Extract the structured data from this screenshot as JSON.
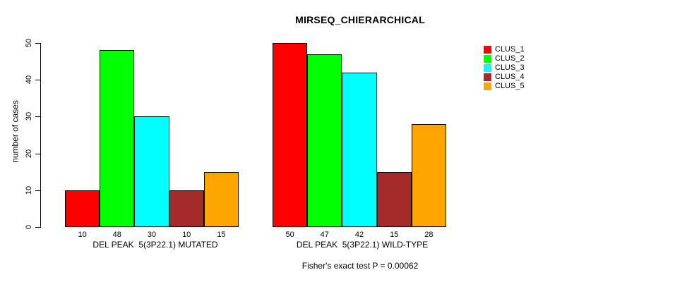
{
  "title": "MIRSEQ_CHIERARCHICAL",
  "ylabel": "number of cases",
  "footer": "Fisher's exact test P = 0.00062",
  "chart_data": {
    "type": "bar",
    "title": "MIRSEQ_CHIERARCHICAL",
    "xlabel": "",
    "ylabel": "number of cases",
    "ylim": [
      0,
      50
    ],
    "yticks": [
      0,
      10,
      20,
      30,
      40,
      50
    ],
    "grid": false,
    "legend_position": "right",
    "categories": [
      "DEL PEAK  5(3P22.1) MUTATED",
      "DEL PEAK  5(3P22.1) WILD-TYPE"
    ],
    "series": [
      {
        "name": "CLUS_1",
        "color": "#FF0000",
        "values": [
          10,
          50
        ]
      },
      {
        "name": "CLUS_2",
        "color": "#00FF00",
        "values": [
          48,
          47
        ]
      },
      {
        "name": "CLUS_3",
        "color": "#00FFFF",
        "values": [
          30,
          42
        ]
      },
      {
        "name": "CLUS_4",
        "color": "#A52A2A",
        "values": [
          10,
          15
        ]
      },
      {
        "name": "CLUS_5",
        "color": "#FFA500",
        "values": [
          15,
          28
        ]
      }
    ],
    "bar_value_labels": {
      "DEL PEAK  5(3P22.1) MUTATED": [
        10,
        48,
        30,
        10,
        15
      ],
      "DEL PEAK  5(3P22.1) WILD-TYPE": [
        50,
        47,
        42,
        15,
        28
      ]
    },
    "annotation": "Fisher's exact test P = 0.00062"
  }
}
